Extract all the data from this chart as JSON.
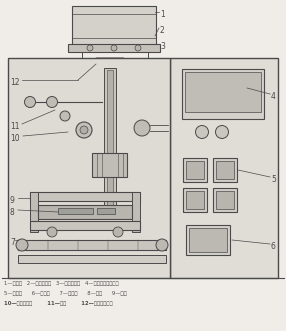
{
  "bg_color": "#f0ede8",
  "line_color": "#4a4a4a",
  "legend1": "1—供料盘   2—供料吹气口   3—分离吹气口   4—触摸屏及控制按组",
  "legend2": "5—气阀组      6—变频器      7—传送带      8—切刀      9—横封",
  "legend3": "10—纵封拿引轮        11—纵封        12—包装装成型器"
}
